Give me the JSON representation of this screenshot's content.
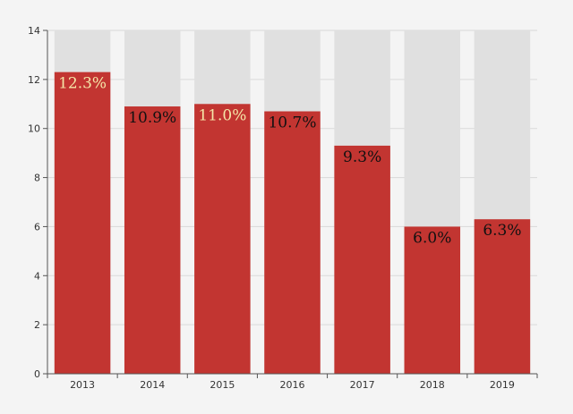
{
  "chart_data": {
    "type": "bar",
    "categories": [
      "2013",
      "2014",
      "2015",
      "2016",
      "2017",
      "2018",
      "2019"
    ],
    "values": [
      12.3,
      10.9,
      11.0,
      10.7,
      9.3,
      6.0,
      6.3
    ],
    "data_labels": [
      "12.3%",
      "10.9%",
      "11.0%",
      "10.7%",
      "9.3%",
      "6.0%",
      "6.3%"
    ],
    "data_label_colors": [
      "#f5e6a8",
      "#111111",
      "#f5e6a8",
      "#111111",
      "#111111",
      "#111111",
      "#111111"
    ],
    "ylim": [
      0,
      14
    ],
    "yticks": [
      "0",
      "2",
      "4",
      "6",
      "8",
      "10",
      "12",
      "14"
    ],
    "bar_color": "#c23531",
    "background_bar_color": "#e0e0e0",
    "grid": true,
    "legend": "none"
  }
}
